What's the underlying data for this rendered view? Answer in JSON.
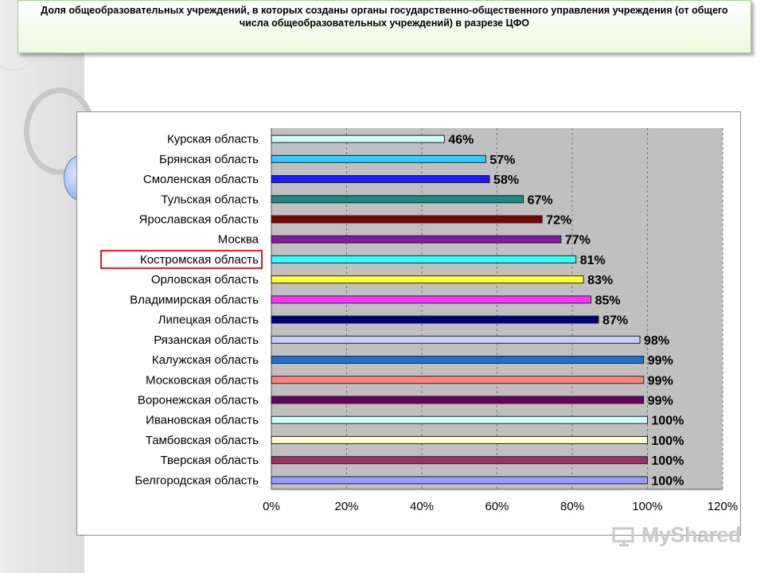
{
  "title": "Доля общеобразовательных учреждений, в которых созданы органы государственно-общественного управления учреждения (от общего числа общеобразовательных учреждений) в разрезе ЦФО",
  "watermark": "MyShared",
  "chart_data": {
    "type": "bar",
    "orientation": "horizontal",
    "categories": [
      "Курская область",
      "Брянская область",
      "Смоленская область",
      "Тульская область",
      "Ярославская область",
      "Москва",
      "Костромская область",
      "Орловская область",
      "Владимирская область",
      "Липецкая область",
      "Рязанская область",
      "Калужская область",
      "Московская область",
      "Воронежская область",
      "Ивановская область",
      "Тамбовская область",
      "Тверская область",
      "Белгородская область"
    ],
    "values": [
      46,
      57,
      58,
      67,
      72,
      77,
      81,
      83,
      85,
      87,
      98,
      99,
      99,
      99,
      100,
      100,
      100,
      100
    ],
    "value_labels": [
      "46%",
      "57%",
      "58%",
      "67%",
      "72%",
      "77%",
      "81%",
      "83%",
      "85%",
      "87%",
      "98%",
      "99%",
      "99%",
      "99%",
      "100%",
      "100%",
      "100%",
      "100%"
    ],
    "bar_colors": [
      "#ccffff",
      "#33ccff",
      "#1a1aff",
      "#1a8a8a",
      "#800000",
      "#7f1fa0",
      "#33ffff",
      "#ffff33",
      "#ff33ff",
      "#000080",
      "#ccccff",
      "#1f6fd6",
      "#ff8080",
      "#660066",
      "#ccffff",
      "#ffffcc",
      "#993366",
      "#9999ff"
    ],
    "highlighted_category": "Костромская область",
    "highlight_color": "#e02020",
    "xlim": [
      0,
      120
    ],
    "xticks": [
      "0%",
      "20%",
      "40%",
      "60%",
      "80%",
      "100%",
      "120%"
    ],
    "grid": "vertical dashed",
    "plot_background": "#c0c0c0",
    "legend": "none",
    "xlabel": "",
    "ylabel": ""
  }
}
